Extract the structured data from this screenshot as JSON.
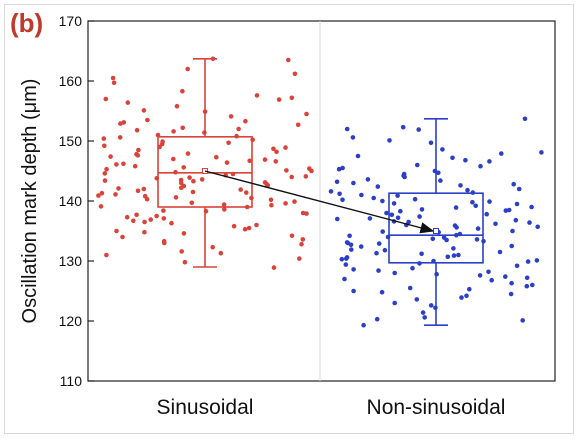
{
  "panel_label": "(b)",
  "chart_data": {
    "type": "boxplot",
    "ylabel": "Oscillation mark depth (μm)",
    "xlabel": "",
    "ylim": [
      110,
      170
    ],
    "yticks": [
      110,
      120,
      130,
      140,
      150,
      160,
      170
    ],
    "grid": false,
    "legend": "none",
    "categories": [
      "Sinusoidal",
      "Non-sinusoidal"
    ],
    "series": [
      {
        "color": "#d9433a",
        "box": {
          "whisker_low": 129,
          "q1": 139,
          "median": 144.7,
          "mean": 145,
          "q3": 150.7,
          "whisker_high": 163.7
        },
        "points": [
          163.5,
          161.2,
          160.5,
          158.3,
          157.2,
          156.4,
          155.8,
          154.9,
          154.1,
          153.5,
          153.1,
          152.7,
          152.2,
          151.8,
          151.4,
          151.0,
          150.6,
          150.2,
          149.9,
          149.5,
          149.2,
          148.9,
          148.5,
          148.2,
          147.9,
          147.6,
          147.3,
          147.0,
          146.7,
          146.4,
          146.1,
          145.8,
          145.6,
          145.3,
          145.0,
          144.8,
          144.5,
          144.3,
          144.0,
          143.8,
          143.5,
          143.3,
          143.0,
          142.8,
          142.5,
          142.2,
          142.0,
          141.7,
          141.4,
          141.1,
          140.8,
          140.5,
          140.2,
          139.9,
          139.6,
          139.3,
          139.0,
          138.6,
          138.3,
          137.9,
          137.5,
          137.1,
          136.7,
          136.3,
          135.8,
          135.3,
          134.8,
          134.2,
          133.6,
          133.0,
          132.3,
          131.6,
          131.0,
          130.4,
          129.8,
          128.9,
          163.7,
          162.0,
          159.7,
          157.6,
          156.9,
          155.1,
          154.5,
          152.9,
          152.0,
          150.8,
          149.7,
          148.7,
          147.8,
          146.9,
          146.2,
          145.4,
          144.6,
          144.1,
          143.6,
          143.1,
          142.6,
          142.1,
          141.5,
          140.9,
          140.3,
          139.7,
          139.1,
          138.4,
          137.7,
          136.9,
          136.0,
          135.0,
          134.0,
          132.8,
          131.3,
          157.0,
          151.6,
          147.4,
          143.9,
          140.6,
          138.0,
          135.5,
          134.6,
          153.3,
          149.0,
          145.1,
          141.9,
          139.4,
          136.5,
          133.3,
          150.4,
          146.6,
          143.4,
          141.3,
          137.3
        ]
      },
      {
        "color": "#2b3fc9",
        "box": {
          "whisker_low": 119.3,
          "q1": 129.7,
          "median": 134.3,
          "mean": 135,
          "q3": 141.3,
          "whisker_high": 153.7
        },
        "points": [
          153.7,
          152.3,
          151.9,
          150.6,
          149.7,
          148.6,
          147.9,
          147.2,
          146.6,
          146.0,
          145.5,
          145.0,
          144.5,
          144.0,
          143.6,
          143.2,
          142.8,
          142.4,
          142.0,
          141.6,
          141.2,
          140.9,
          140.5,
          140.2,
          139.9,
          139.5,
          139.2,
          138.9,
          138.6,
          138.3,
          138.0,
          137.7,
          137.4,
          137.1,
          136.8,
          136.5,
          136.2,
          135.9,
          135.6,
          135.3,
          135.0,
          134.8,
          134.5,
          134.2,
          133.9,
          133.6,
          133.3,
          133.0,
          132.7,
          132.4,
          132.1,
          131.8,
          131.5,
          131.2,
          130.9,
          130.6,
          130.3,
          130.0,
          129.6,
          129.2,
          128.8,
          128.4,
          128.0,
          127.6,
          127.2,
          126.8,
          126.3,
          125.8,
          125.3,
          124.8,
          124.2,
          123.6,
          123.0,
          122.2,
          121.4,
          120.6,
          120.1,
          119.3,
          152.0,
          150.1,
          148.1,
          146.8,
          145.3,
          144.2,
          143.4,
          142.6,
          141.8,
          141.0,
          140.3,
          139.6,
          139.0,
          138.4,
          137.8,
          137.2,
          136.6,
          136.0,
          135.4,
          134.9,
          134.3,
          133.7,
          133.1,
          132.5,
          131.9,
          131.3,
          130.7,
          130.1,
          129.4,
          128.6,
          127.8,
          127.0,
          126.0,
          125.0,
          123.9,
          122.6,
          120.3,
          147.5,
          143.0,
          140.0,
          137.0,
          134.0,
          131.0,
          128.2,
          125.5,
          145.8,
          141.4,
          138.5,
          135.7,
          132.9,
          130.4,
          127.4,
          124.5,
          144.7,
          139.8,
          136.4,
          133.5,
          129.9
        ]
      }
    ],
    "annotations": [
      {
        "type": "arrow",
        "from": {
          "category": "Sinusoidal",
          "value": 145
        },
        "to": {
          "category": "Non-sinusoidal",
          "value": 135
        }
      }
    ]
  }
}
